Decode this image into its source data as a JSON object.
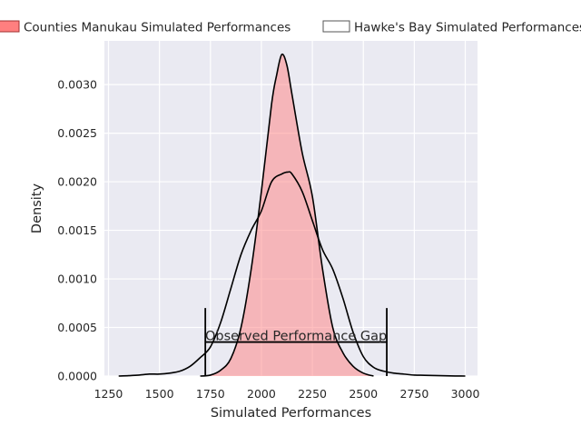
{
  "chart_data": {
    "type": "area",
    "title": "",
    "xlabel": "Simulated Performances",
    "ylabel": "Density",
    "xlim": [
      1230,
      3060
    ],
    "ylim": [
      0,
      0.00345
    ],
    "x_ticks": [
      1250,
      1500,
      1750,
      2000,
      2250,
      2500,
      2750,
      3000
    ],
    "x_tick_labels": [
      "1250",
      "1500",
      "1750",
      "2000",
      "2250",
      "2500",
      "2750",
      "3000"
    ],
    "y_ticks": [
      0,
      0.0005,
      0.001,
      0.0015,
      0.002,
      0.0025,
      0.003
    ],
    "y_tick_labels": [
      "0.0000",
      "0.0005",
      "0.0010",
      "0.0015",
      "0.0020",
      "0.0025",
      "0.0030"
    ],
    "grid": true,
    "legend": {
      "placement": "top",
      "columns": 2
    },
    "colors": {
      "background": "#eaeaf2",
      "grid": "#ffffff",
      "fill_counties": "#ff7f7f",
      "line": "#000000",
      "text": "#262626"
    },
    "series": [
      {
        "name": "Counties Manukau Simulated Performances",
        "style": "filled",
        "x": [
          1700,
          1750,
          1800,
          1850,
          1900,
          1950,
          2000,
          2050,
          2075,
          2100,
          2125,
          2150,
          2200,
          2250,
          2300,
          2350,
          2400,
          2450,
          2500,
          2550
        ],
        "y": [
          0.0,
          1e-05,
          6e-05,
          0.00018,
          0.0005,
          0.0011,
          0.0019,
          0.0028,
          0.0031,
          0.00331,
          0.0032,
          0.0029,
          0.0023,
          0.00185,
          0.0011,
          0.0005,
          0.00024,
          0.0001,
          3e-05,
          0.0
        ]
      },
      {
        "name": "Hawke's Bay Simulated Performances",
        "style": "line",
        "x": [
          1300,
          1350,
          1400,
          1450,
          1500,
          1550,
          1600,
          1650,
          1700,
          1750,
          1800,
          1850,
          1900,
          1950,
          2000,
          2050,
          2100,
          2130,
          2150,
          2200,
          2250,
          2300,
          2350,
          2400,
          2450,
          2500,
          2550,
          2600,
          2650,
          2700,
          2750,
          2800,
          2850,
          2900,
          2950,
          3000
        ],
        "y": [
          0.0,
          4e-06,
          1e-05,
          2e-05,
          2e-05,
          3e-05,
          5e-05,
          0.0001,
          0.00019,
          0.0003,
          0.00055,
          0.0009,
          0.00125,
          0.0015,
          0.0017,
          0.002,
          0.00208,
          0.0021,
          0.00208,
          0.0019,
          0.0016,
          0.0013,
          0.0011,
          0.0008,
          0.00045,
          0.0002,
          9e-05,
          5e-05,
          3e-05,
          2e-05,
          1e-05,
          8e-06,
          5e-06,
          3e-06,
          1e-06,
          0.0
        ]
      }
    ],
    "annotations": [
      {
        "text": "Observed Performance Gap",
        "x_start": 1725,
        "x_end": 2615,
        "y": 0.00035,
        "cap_top": 0.0007,
        "cap_bottom": 0.0
      }
    ]
  }
}
